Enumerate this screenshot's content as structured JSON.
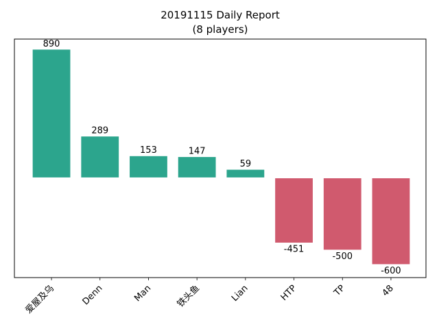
{
  "chart_data": {
    "type": "bar",
    "title": "20191115 Daily Report",
    "subtitle": "(8 players)",
    "xlabel": "",
    "ylabel": "",
    "categories": [
      "爱屋及乌",
      "Denn",
      "Man",
      "铁头鱼",
      "Lian",
      "HTP",
      "TP",
      "48"
    ],
    "values": [
      890,
      289,
      153,
      147,
      59,
      -451,
      -500,
      -600
    ],
    "ylim": [
      -690,
      960
    ],
    "y_ticks_visible": false,
    "grid": false,
    "legend": "none",
    "colors": {
      "positive": "#2ca58d",
      "negative": "#d05a6e",
      "edge": "#ffffff"
    },
    "tick_label_rotation_deg": -45
  }
}
